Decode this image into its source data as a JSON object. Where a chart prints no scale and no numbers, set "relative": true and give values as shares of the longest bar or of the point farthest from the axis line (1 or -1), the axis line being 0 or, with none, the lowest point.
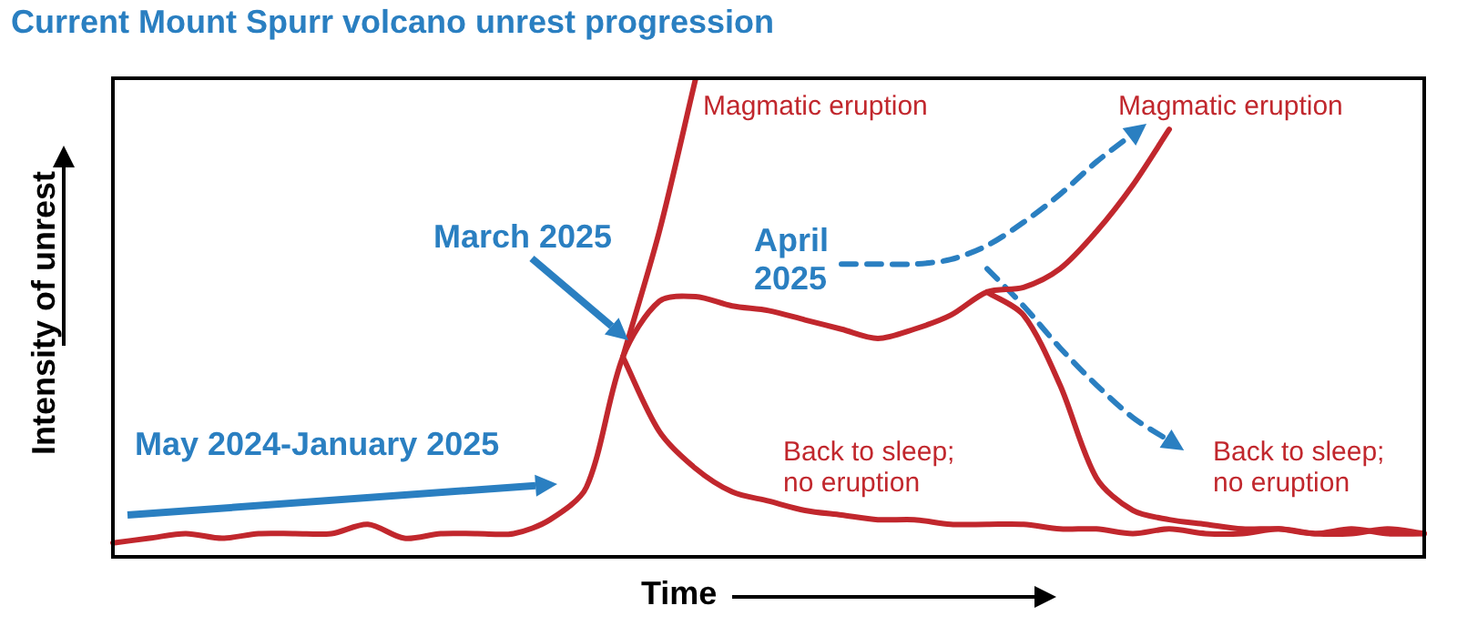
{
  "chart_data": {
    "type": "line",
    "title": "Current Mount Spurr volcano unrest progression",
    "xlabel": "Time",
    "ylabel": "Intensity of unrest",
    "relative": true,
    "legend": false,
    "marker": "none",
    "categories": [
      null,
      null,
      null,
      null,
      null,
      null,
      null,
      null,
      null,
      null,
      null,
      null,
      null,
      null,
      null,
      null,
      null,
      null,
      null,
      null,
      null,
      null,
      null,
      null,
      null,
      null,
      null,
      null,
      null,
      null,
      null,
      null,
      null,
      null,
      null,
      null,
      null
    ],
    "series": [
      {
        "color": "#c1272d",
        "line_style": "solid",
        "values": [
          0,
          0.01,
          0.02,
          0.01,
          0.02,
          0.02,
          0.02,
          0.04,
          0.01,
          0.02,
          0.02,
          0.02,
          0.05,
          0.12,
          0.4,
          0.52,
          0.53,
          0.51,
          0.5,
          0.48,
          0.46,
          0.44,
          0.46,
          0.49,
          0.54,
          0.55,
          0.59,
          0.67,
          0.77,
          0.89,
          null,
          null,
          null,
          null,
          null,
          null,
          null
        ]
      },
      {
        "color": "#c1272d",
        "line_style": "solid",
        "values": [
          null,
          null,
          null,
          null,
          null,
          null,
          null,
          null,
          null,
          null,
          null,
          null,
          null,
          null,
          0.4,
          0.67,
          1.0,
          null,
          null,
          null,
          null,
          null,
          null,
          null,
          null,
          null,
          null,
          null,
          null,
          null,
          null,
          null,
          null,
          null,
          null,
          null,
          null
        ]
      },
      {
        "color": "#c1272d",
        "line_style": "solid",
        "values": [
          null,
          null,
          null,
          null,
          null,
          null,
          null,
          null,
          null,
          null,
          null,
          null,
          null,
          null,
          0.4,
          0.24,
          0.16,
          0.11,
          0.09,
          0.07,
          0.06,
          0.05,
          0.05,
          0.04,
          0.04,
          0.04,
          0.03,
          0.03,
          0.02,
          0.03,
          0.02,
          0.02,
          0.03,
          0.02,
          0.02,
          0.03,
          0.02
        ]
      },
      {
        "color": "#c1272d",
        "line_style": "solid",
        "values": [
          null,
          null,
          null,
          null,
          null,
          null,
          null,
          null,
          null,
          null,
          null,
          null,
          null,
          null,
          null,
          null,
          null,
          null,
          null,
          null,
          null,
          null,
          null,
          null,
          0.54,
          0.49,
          0.34,
          0.14,
          0.07,
          0.05,
          0.04,
          0.03,
          0.03,
          0.02,
          0.03,
          0.02,
          0.02
        ]
      },
      {
        "color": "#2a7fc1",
        "line_style": "dashed",
        "values": [
          null,
          null,
          null,
          null,
          null,
          null,
          null,
          null,
          null,
          null,
          null,
          null,
          null,
          null,
          null,
          null,
          null,
          null,
          null,
          null,
          0.6,
          0.6,
          0.6,
          0.61,
          0.64,
          0.69,
          0.75,
          0.82,
          0.88,
          null,
          null,
          null,
          null,
          null,
          null,
          null,
          null
        ]
      },
      {
        "color": "#2a7fc1",
        "line_style": "dashed",
        "values": [
          null,
          null,
          null,
          null,
          null,
          null,
          null,
          null,
          null,
          null,
          null,
          null,
          null,
          null,
          null,
          null,
          null,
          null,
          null,
          null,
          null,
          null,
          null,
          null,
          0.59,
          0.51,
          0.42,
          0.34,
          0.27,
          0.22,
          null,
          null,
          null,
          null,
          null,
          null,
          null
        ]
      }
    ],
    "annotations": [
      "Magmatic eruption",
      "Magmatic eruption",
      "March 2025",
      "April 2025",
      "May 2024-January 2025",
      "Back to sleep; no eruption",
      "Back to sleep; no eruption"
    ]
  }
}
